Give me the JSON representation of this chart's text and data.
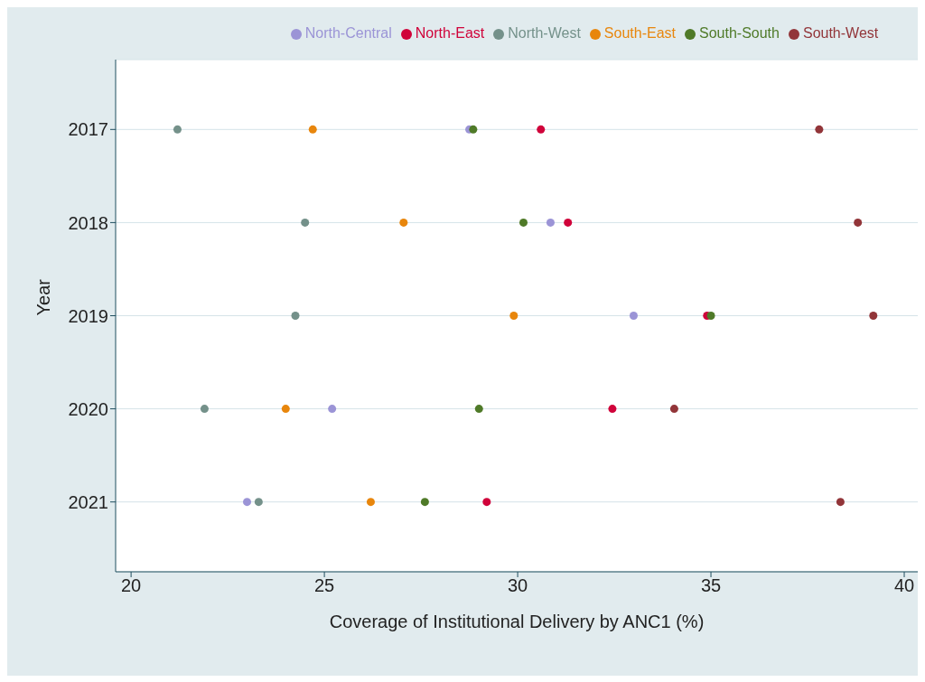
{
  "chart_data": {
    "type": "scatter",
    "orientation": "horizontal",
    "xlabel": "Coverage of Institutional Delivery by ANC1 (%)",
    "ylabel": "Year",
    "categories": [
      "2017",
      "2018",
      "2019",
      "2020",
      "2021"
    ],
    "series": [
      {
        "name": "North-Central",
        "color": "#9b94d6",
        "values": [
          28.75,
          30.85,
          33.0,
          25.2,
          23.0
        ]
      },
      {
        "name": "North-East",
        "color": "#d0033a",
        "values": [
          30.6,
          31.3,
          34.9,
          32.45,
          29.2
        ]
      },
      {
        "name": "North-West",
        "color": "#74918a",
        "values": [
          21.2,
          24.5,
          24.25,
          21.9,
          23.3
        ]
      },
      {
        "name": "South-East",
        "color": "#e8860c",
        "values": [
          24.7,
          27.05,
          29.9,
          24.0,
          26.2
        ]
      },
      {
        "name": "South-South",
        "color": "#4f7a28",
        "values": [
          28.85,
          30.15,
          35.0,
          29.0,
          27.6
        ]
      },
      {
        "name": "South-West",
        "color": "#923539",
        "values": [
          37.8,
          38.8,
          39.2,
          34.05,
          38.35
        ]
      }
    ],
    "xlim": [
      19.6,
      40.35
    ],
    "xticks": [
      20,
      25,
      30,
      35,
      40
    ],
    "grid": "y",
    "legend": "top",
    "marker": "circle"
  }
}
